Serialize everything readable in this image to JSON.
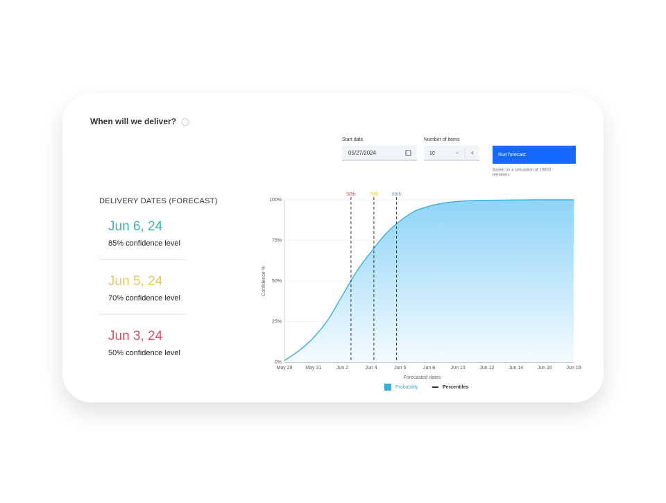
{
  "header": {
    "title": "When will we deliver?"
  },
  "form": {
    "start_date_label": "Start date",
    "start_date": "05/27/2024",
    "items_label": "Number of items",
    "items": "10",
    "minus": "−",
    "plus": "+",
    "button": "Run forecast",
    "note": [
      "Based on a simulation of 10000",
      "iterations"
    ]
  },
  "forecast": {
    "title": "DELIVERY DATES (FORECAST)",
    "items": [
      {
        "date": "Jun 6, 24",
        "label": "85% confidence level",
        "color": "#3bb3b3"
      },
      {
        "date": "Jun 5, 24",
        "label": "70% confidence level",
        "color": "#e8c95c"
      },
      {
        "date": "Jun 3, 24",
        "label": "50% confidence level",
        "color": "#d9505e"
      }
    ]
  },
  "chart_data": {
    "type": "area",
    "xlabel": "Forecasted dates",
    "ylabel": "Confidence %",
    "categories": [
      "May 29",
      null,
      "May 31",
      null,
      "Jun 2",
      null,
      "Jun 4",
      null,
      "Jun 6",
      null,
      "Jun 8",
      null,
      "Jun 10",
      null,
      "Jun 12",
      null,
      "Jun 14",
      null,
      "Jun 16",
      null,
      "Jun 18"
    ],
    "series": [
      {
        "name": "Probability",
        "color": "#3aaedf",
        "values": [
          1,
          7,
          15,
          26,
          41,
          56,
          68,
          79,
          87,
          93,
          96,
          98,
          99,
          99.5,
          99.7,
          99.8,
          99.9,
          100,
          100,
          100,
          100
        ]
      }
    ],
    "percentiles": [
      {
        "value": 50,
        "label": "50th",
        "color": "#e0505a"
      },
      {
        "value": 70,
        "label": "70th",
        "color": "#ecc24a"
      },
      {
        "value": 85,
        "label": "85th",
        "color": "#3aaedf"
      }
    ],
    "percentile_legend": {
      "name": "Percentiles",
      "color": "#333333"
    },
    "ylim": [
      0,
      100
    ],
    "yticks": [
      {
        "value": 0,
        "label": "0%"
      },
      {
        "value": 25,
        "label": "25%"
      },
      {
        "value": 50,
        "label": "50%"
      },
      {
        "value": 75,
        "label": "75%"
      },
      {
        "value": 100,
        "label": "100%"
      }
    ],
    "grid": true
  }
}
